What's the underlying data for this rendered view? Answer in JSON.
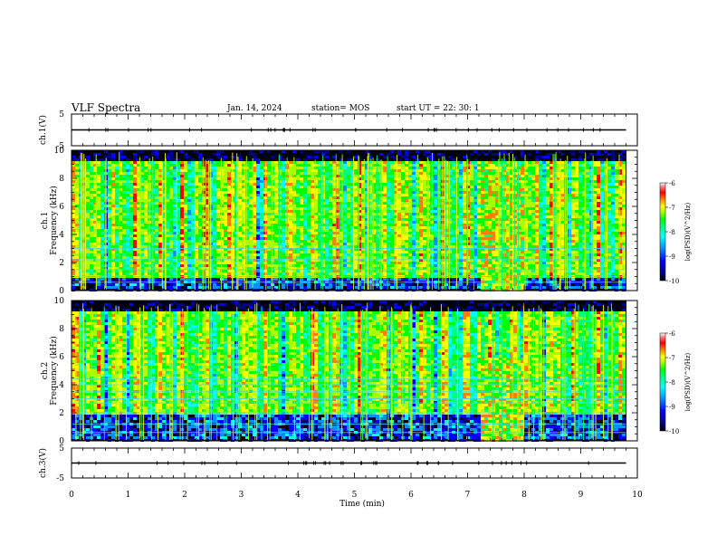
{
  "header": {
    "title": "VLF Spectra",
    "date": "Jan. 14, 2024",
    "station": "station= MOS",
    "start_ut": "start UT =  22: 30: 1"
  },
  "colors": {
    "spectrogram_scale": [
      "#000000",
      "#00008b",
      "#0000ff",
      "#0090ff",
      "#00ffff",
      "#00ff80",
      "#00ff00",
      "#aaff00",
      "#ffff00",
      "#ff8000",
      "#ff0000",
      "#ff8080",
      "#ffffff"
    ],
    "trace": "#000000"
  },
  "chart_data": [
    {
      "type": "line",
      "name": "ch.1 waveform",
      "ylabel": "ch.1(V)",
      "ylim": [
        -5,
        5
      ],
      "yticks": [
        5,
        -5
      ],
      "xlim": [
        0,
        10
      ],
      "x": [
        0,
        9.8
      ],
      "y": [
        0,
        0
      ]
    },
    {
      "type": "heatmap",
      "ylabel_lines": [
        "ch.1",
        "Frequency (kHz)"
      ],
      "xlim": [
        0,
        10
      ],
      "ylim": [
        0,
        10
      ],
      "yticks": [
        0,
        2,
        4,
        6,
        8,
        10
      ],
      "data_end_min": 9.8,
      "colorbar": {
        "label": "log(PSD)(V^2/Hz)",
        "range": [
          -10,
          -6
        ],
        "ticks": [
          -6,
          -7,
          -8,
          -9,
          -10
        ]
      },
      "hiss_band_khz": [
        1,
        9
      ],
      "tones_khz": [
        0.6,
        1.0,
        1.5,
        2.2,
        3.0
      ],
      "strong_burst": {
        "t_start_min": 7.2,
        "t_end_min": 8.0,
        "f_top_khz": 9
      }
    },
    {
      "type": "heatmap",
      "ylabel_lines": [
        "ch.2",
        "Frequency (kHz)"
      ],
      "xlim": [
        0,
        10
      ],
      "ylim": [
        0,
        10
      ],
      "yticks": [
        0,
        2,
        4,
        6,
        8,
        10
      ],
      "data_end_min": 9.8,
      "colorbar": {
        "label": "log(PSD)(V^2/Hz)",
        "range": [
          -10,
          -6
        ],
        "ticks": [
          -6,
          -7,
          -8,
          -9,
          -10
        ]
      },
      "hiss_band_khz": [
        2,
        9
      ],
      "tones_khz": [
        0.6,
        1.2,
        2.0,
        2.7,
        3.0,
        3.5,
        4.0,
        4.4
      ],
      "strong_burst": {
        "t_start_min": 7.2,
        "t_end_min": 8.0,
        "f_top_khz": 6
      }
    },
    {
      "type": "line",
      "name": "ch.3 waveform",
      "ylabel": "ch.3(V)",
      "ylim": [
        -5,
        5
      ],
      "yticks": [
        5,
        -5
      ],
      "xlim": [
        0,
        10
      ],
      "x": [
        0,
        9.8
      ],
      "y": [
        0,
        0
      ]
    }
  ],
  "x_axis": {
    "label": "Time (min)",
    "ticks": [
      0,
      1,
      2,
      3,
      4,
      5,
      6,
      7,
      8,
      9,
      10
    ]
  }
}
